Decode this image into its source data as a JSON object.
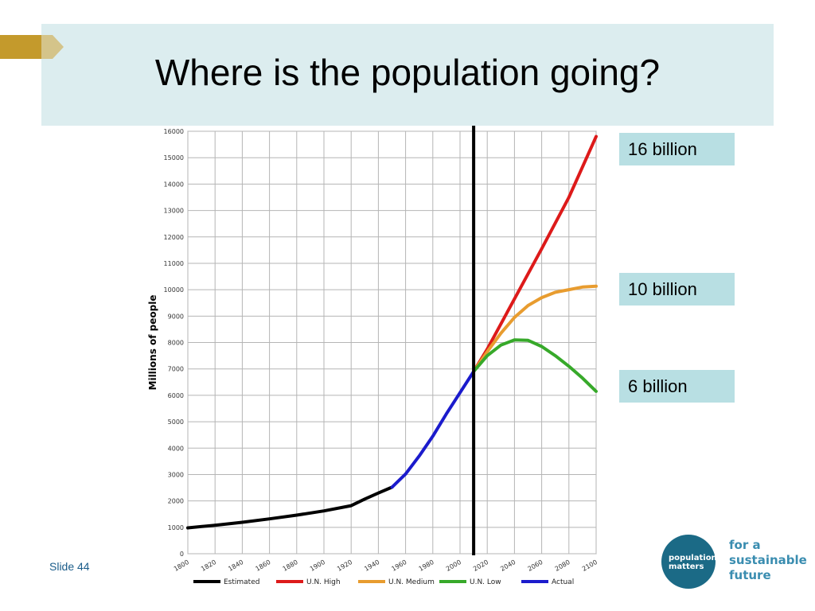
{
  "slide": {
    "title": "Where is the population going?",
    "slide_number": "Slide 44",
    "callouts": [
      {
        "text": "16 billion"
      },
      {
        "text": "10 billion"
      },
      {
        "text": "6 billion"
      }
    ],
    "logo": {
      "circle_line1": "population",
      "circle_line2": "matters",
      "tagline": [
        "for a",
        "sustainable",
        "future"
      ]
    },
    "colors": {
      "title_band": "#dcedef",
      "callout_bg": "#b8dfe3",
      "arrow": "#c49a2c",
      "logo": "#1b6a86"
    }
  },
  "chart_data": {
    "type": "line",
    "title": "",
    "xlabel": "",
    "ylabel": "Millions of people",
    "xlim": [
      1800,
      2100
    ],
    "ylim": [
      0,
      16000
    ],
    "x_ticks": [
      1800,
      1820,
      1840,
      1860,
      1880,
      1900,
      1920,
      1940,
      1960,
      1980,
      2000,
      2020,
      2040,
      2060,
      2080,
      2100
    ],
    "y_ticks": [
      0,
      1000,
      2000,
      3000,
      4000,
      5000,
      6000,
      7000,
      8000,
      9000,
      10000,
      11000,
      12000,
      13000,
      14000,
      15000,
      16000
    ],
    "grid": true,
    "divider_year": 2010,
    "legend_position": "bottom",
    "series": [
      {
        "name": "Estimated",
        "color": "#000000",
        "points": [
          [
            1800,
            980
          ],
          [
            1820,
            1080
          ],
          [
            1840,
            1190
          ],
          [
            1860,
            1320
          ],
          [
            1880,
            1460
          ],
          [
            1900,
            1620
          ],
          [
            1920,
            1820
          ],
          [
            1930,
            2070
          ],
          [
            1940,
            2300
          ],
          [
            1950,
            2520
          ]
        ]
      },
      {
        "name": "U.N. High",
        "color": "#dd1a1a",
        "points": [
          [
            2010,
            6900
          ],
          [
            2020,
            7750
          ],
          [
            2040,
            9650
          ],
          [
            2060,
            11550
          ],
          [
            2080,
            13500
          ],
          [
            2100,
            15800
          ]
        ]
      },
      {
        "name": "U.N. Medium",
        "color": "#e89c2f",
        "points": [
          [
            2010,
            6900
          ],
          [
            2020,
            7650
          ],
          [
            2030,
            8350
          ],
          [
            2040,
            8950
          ],
          [
            2050,
            9400
          ],
          [
            2060,
            9700
          ],
          [
            2070,
            9900
          ],
          [
            2080,
            10000
          ],
          [
            2090,
            10100
          ],
          [
            2100,
            10130
          ]
        ]
      },
      {
        "name": "U.N. Low",
        "color": "#37a92a",
        "points": [
          [
            2010,
            6900
          ],
          [
            2020,
            7500
          ],
          [
            2030,
            7900
          ],
          [
            2040,
            8100
          ],
          [
            2050,
            8080
          ],
          [
            2060,
            7850
          ],
          [
            2070,
            7500
          ],
          [
            2080,
            7100
          ],
          [
            2090,
            6650
          ],
          [
            2100,
            6150
          ]
        ]
      },
      {
        "name": "Actual",
        "color": "#1b1bcc",
        "points": [
          [
            1950,
            2520
          ],
          [
            1960,
            3020
          ],
          [
            1970,
            3700
          ],
          [
            1980,
            4450
          ],
          [
            1990,
            5300
          ],
          [
            2000,
            6100
          ],
          [
            2010,
            6900
          ]
        ]
      }
    ]
  }
}
